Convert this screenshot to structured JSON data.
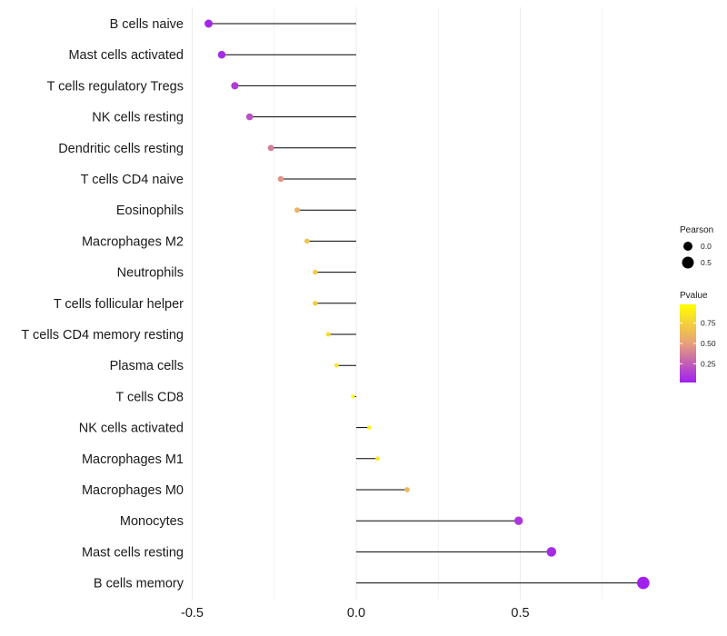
{
  "chart_data": {
    "type": "lollipop",
    "title": "",
    "xlabel": "",
    "ylabel": "",
    "xlim": [
      -0.5,
      0.87
    ],
    "x_ticks": [
      -0.5,
      0.0,
      0.5
    ],
    "x_tick_labels": [
      "-0.5",
      "0.0",
      "0.5"
    ],
    "grid": true,
    "points": [
      {
        "label": "B cells naive",
        "value": -0.45,
        "pvalue": 0.05
      },
      {
        "label": "Mast cells activated",
        "value": -0.41,
        "pvalue": 0.07
      },
      {
        "label": "T cells regulatory  Tregs",
        "value": -0.37,
        "pvalue": 0.12
      },
      {
        "label": "NK cells resting",
        "value": -0.325,
        "pvalue": 0.2
      },
      {
        "label": "Dendritic cells resting",
        "value": -0.26,
        "pvalue": 0.38
      },
      {
        "label": "T cells CD4 naive",
        "value": -0.23,
        "pvalue": 0.45
      },
      {
        "label": "Eosinophils",
        "value": -0.18,
        "pvalue": 0.6
      },
      {
        "label": "Macrophages M2",
        "value": -0.15,
        "pvalue": 0.68
      },
      {
        "label": "Neutrophils",
        "value": -0.125,
        "pvalue": 0.72
      },
      {
        "label": "T cells follicular helper",
        "value": -0.125,
        "pvalue": 0.72
      },
      {
        "label": "T cells CD4 memory resting",
        "value": -0.085,
        "pvalue": 0.8
      },
      {
        "label": "Plasma cells",
        "value": -0.06,
        "pvalue": 0.86
      },
      {
        "label": "T cells CD8",
        "value": -0.01,
        "pvalue": 0.98
      },
      {
        "label": "NK cells activated",
        "value": 0.04,
        "pvalue": 0.92
      },
      {
        "label": "Macrophages M1",
        "value": 0.065,
        "pvalue": 0.86
      },
      {
        "label": "Macrophages M0",
        "value": 0.155,
        "pvalue": 0.62
      },
      {
        "label": "Monocytes",
        "value": 0.495,
        "pvalue": 0.1
      },
      {
        "label": "Mast cells resting",
        "value": 0.595,
        "pvalue": 0.06
      },
      {
        "label": "B cells memory",
        "value": 0.875,
        "pvalue": 0.02
      }
    ],
    "legend": {
      "size": {
        "title": "Pearson",
        "labels": [
          "0.0",
          "0.5"
        ],
        "values": [
          0.0,
          0.5
        ]
      },
      "color": {
        "title": "Pvalue",
        "labels": [
          "0.75",
          "0.50",
          "0.25"
        ],
        "values": [
          0.75,
          0.5,
          0.25
        ],
        "range": [
          0.02,
          0.98
        ],
        "low_color": "#a020f0",
        "mid_color": "#e6a07a",
        "high_color": "#ffff00"
      },
      "placement": "right"
    },
    "colors": {
      "segment": "#000000",
      "grid": "#ebebeb"
    }
  }
}
